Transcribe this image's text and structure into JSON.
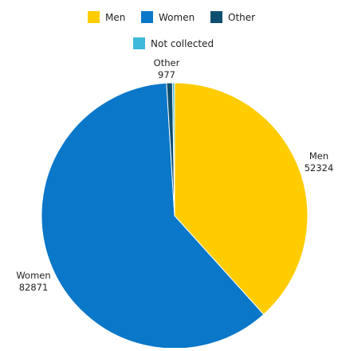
{
  "chart_data": {
    "type": "pie",
    "legend_placement": "top-center",
    "slices": [
      {
        "label": "Men",
        "value": 52324,
        "color": "#FFCC00",
        "value_label": "52324"
      },
      {
        "label": "Women",
        "value": 82871,
        "color": "#0A77C9",
        "value_label": "82871"
      },
      {
        "label": "Other",
        "value": 977,
        "color": "#0E4F70",
        "value_label": "977"
      },
      {
        "label": "Not collected",
        "value": 340,
        "color": "#3FB9D9",
        "value_label": ""
      }
    ]
  }
}
